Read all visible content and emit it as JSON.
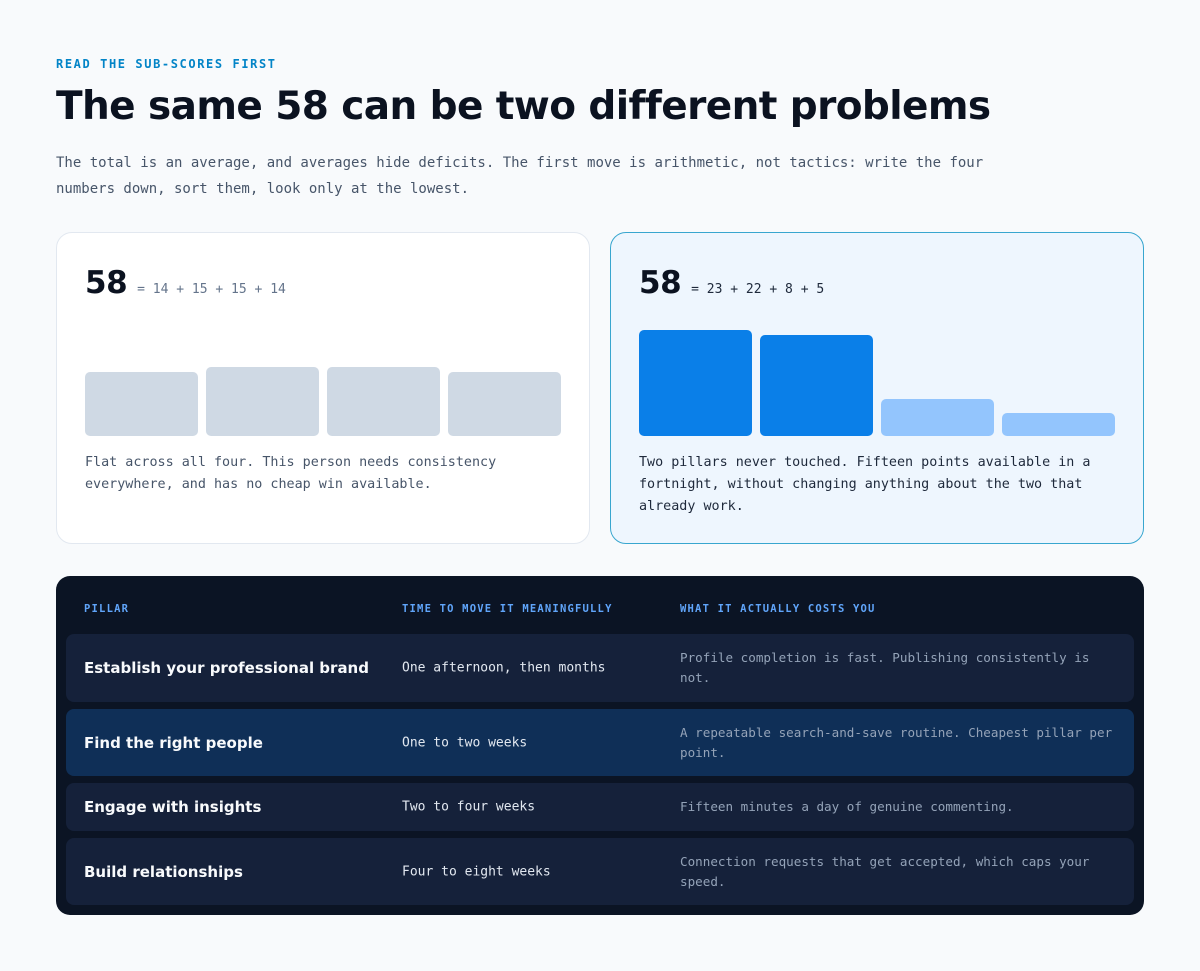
{
  "header": {
    "eyebrow": "READ THE SUB-SCORES FIRST",
    "title": "The same 58 can be two different problems",
    "lede": "The total is an average, and averages hide deficits. The first move is arithmetic, not tactics: write the four numbers down, sort them, look only at the lowest."
  },
  "cards": [
    {
      "total": "58",
      "equation": "= 14 + 15 + 15 + 14",
      "caption": "Flat across all four. This person needs consistency everywhere, and has no cheap win available.",
      "bar_colors": [
        "#cfd9e4",
        "#cfd9e4",
        "#cfd9e4",
        "#cfd9e4"
      ]
    },
    {
      "total": "58",
      "equation": "= 23 + 22 + 8 + 5",
      "caption": "Two pillars never touched. Fifteen points available in a fortnight, without changing anything about the two that already work.",
      "bar_colors": [
        "#0a7fe8",
        "#0a7fe8",
        "#93c5fd",
        "#93c5fd"
      ]
    }
  ],
  "chart_data": [
    {
      "type": "bar",
      "categories": [
        "Establish your professional brand",
        "Find the right people",
        "Engage with insights",
        "Build relationships"
      ],
      "values": [
        14,
        15,
        15,
        14
      ],
      "ylim": [
        0,
        25
      ]
    },
    {
      "type": "bar",
      "categories": [
        "Establish your professional brand",
        "Find the right people",
        "Engage with insights",
        "Build relationships"
      ],
      "values": [
        23,
        22,
        8,
        5
      ],
      "ylim": [
        0,
        25
      ]
    }
  ],
  "table": {
    "headers": [
      "PILLAR",
      "TIME TO MOVE IT MEANINGFULLY",
      "WHAT IT ACTUALLY COSTS YOU"
    ],
    "rows": [
      {
        "pillar": "Establish your professional brand",
        "time": "One afternoon, then months",
        "cost": "Profile completion is fast. Publishing consistently is not."
      },
      {
        "pillar": "Find the right people",
        "time": "One to two weeks",
        "cost": "A repeatable search-and-save routine. Cheapest pillar per point."
      },
      {
        "pillar": "Engage with insights",
        "time": "Two to four weeks",
        "cost": "Fifteen minutes a day of genuine commenting."
      },
      {
        "pillar": "Build relationships",
        "time": "Four to eight weeks",
        "cost": "Connection requests that get accepted, which caps your speed."
      }
    ]
  }
}
